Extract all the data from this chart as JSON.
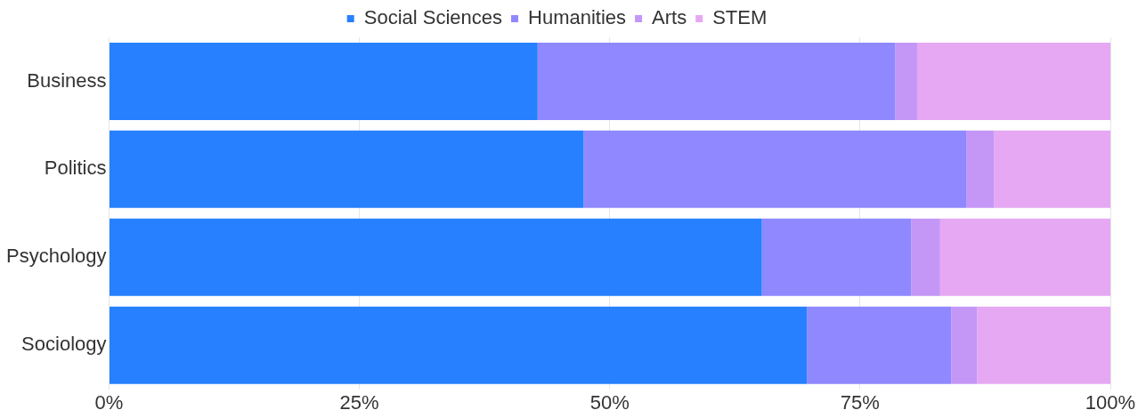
{
  "chart_data": {
    "type": "bar",
    "orientation": "horizontal",
    "stacked": true,
    "categories": [
      "Business",
      "Politics",
      "Psychology",
      "Sociology"
    ],
    "series": [
      {
        "name": "Social Sciences",
        "color": "#2680ff",
        "values": [
          42.8,
          47.4,
          65.2,
          69.7
        ]
      },
      {
        "name": "Humanities",
        "color": "#8f88ff",
        "values": [
          35.7,
          38.2,
          14.9,
          14.4
        ]
      },
      {
        "name": "Arts",
        "color": "#c497f7",
        "values": [
          2.2,
          2.8,
          2.9,
          2.6
        ]
      },
      {
        "name": "STEM",
        "color": "#e6a8f3",
        "values": [
          19.3,
          11.6,
          17.0,
          13.3
        ]
      }
    ],
    "xlim": [
      0,
      100
    ],
    "xticks": [
      {
        "value": 0,
        "label": "0%"
      },
      {
        "value": 25,
        "label": "25%"
      },
      {
        "value": 50,
        "label": "50%"
      },
      {
        "value": 75,
        "label": "75%"
      },
      {
        "value": 100,
        "label": "100%"
      }
    ],
    "grid": "x",
    "legend": "top"
  }
}
